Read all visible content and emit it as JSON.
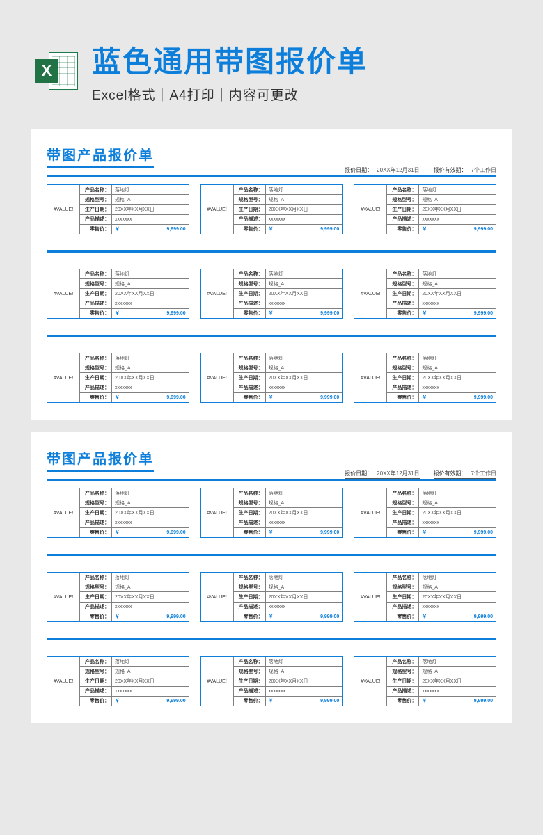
{
  "header": {
    "main_title": "蓝色通用带图报价单",
    "subtitle": "Excel格式｜A4打印｜内容可更改",
    "icon_letter": "X"
  },
  "doc": {
    "title": "带图产品报价单",
    "meta": {
      "date_label": "报价日期：",
      "date_value": "20XX年12月31日",
      "valid_label": "报价有效期：",
      "valid_value": "7个工作日"
    }
  },
  "card": {
    "img_placeholder": "#VALUE!",
    "labels": {
      "name": "产品名称：",
      "model": "规格型号：",
      "prod_date": "生产日期：",
      "desc": "产品描述：",
      "price": "零售价："
    },
    "values": {
      "name": "落地灯",
      "model": "规格_A",
      "prod_date": "20XX年XX月XX日",
      "desc": "xxxxxxx",
      "currency": "￥",
      "amount": "9,999.00"
    }
  },
  "colors": {
    "accent": "#0d7fdb",
    "page_bg": "#ffffff",
    "body_bg": "#e8e8e8",
    "grid_border": "#808080",
    "excel_green": "#217346"
  }
}
